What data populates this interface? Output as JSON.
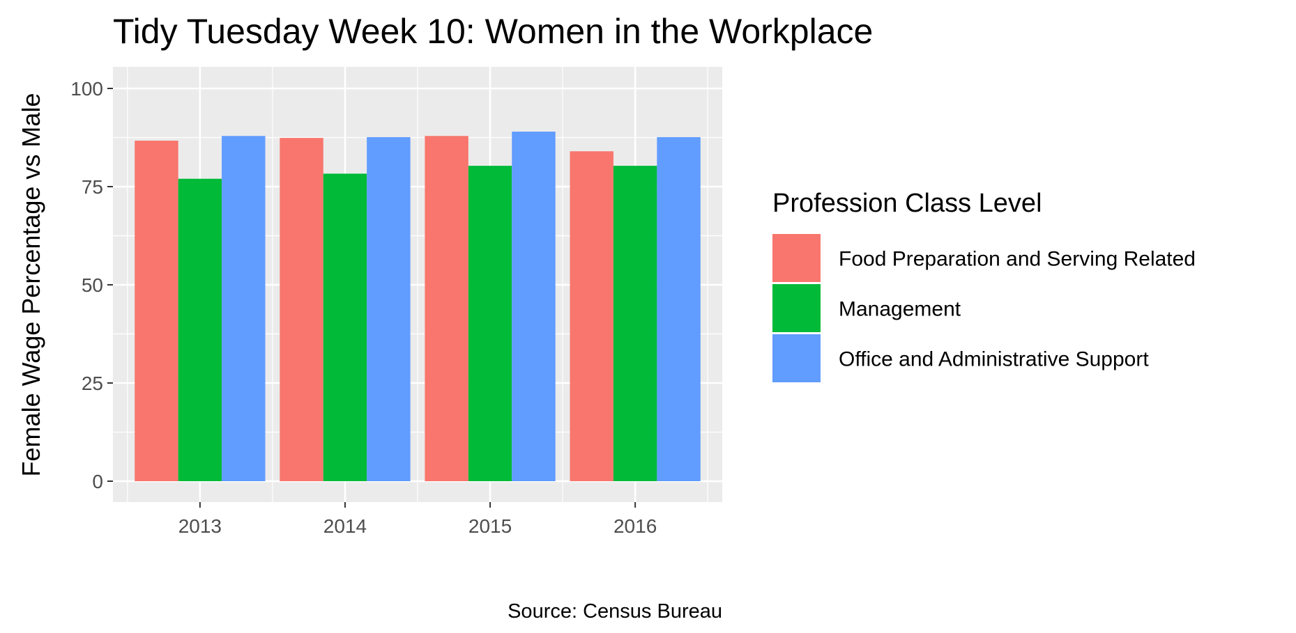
{
  "chart_data": {
    "type": "bar",
    "title": "Tidy Tuesday Week 10: Women in the Workplace",
    "xlabel": "",
    "ylabel": "Female Wage Percentage vs Male",
    "caption": "Source: Census Bureau",
    "categories": [
      "2013",
      "2014",
      "2015",
      "2016"
    ],
    "ylim": [
      0,
      100
    ],
    "yticks": [
      0,
      25,
      50,
      75,
      100
    ],
    "grid": true,
    "legend": {
      "title": "Profession Class Level",
      "position": "right"
    },
    "series": [
      {
        "name": "Food Preparation and Serving Related",
        "color": "#F8766D",
        "values": [
          86.7,
          87.4,
          87.9,
          84.0
        ]
      },
      {
        "name": "Management",
        "color": "#00BA38",
        "values": [
          77.0,
          78.3,
          80.3,
          80.3
        ]
      },
      {
        "name": "Office and Administrative Support",
        "color": "#619CFF",
        "values": [
          87.9,
          87.6,
          89.0,
          87.6
        ]
      }
    ]
  }
}
